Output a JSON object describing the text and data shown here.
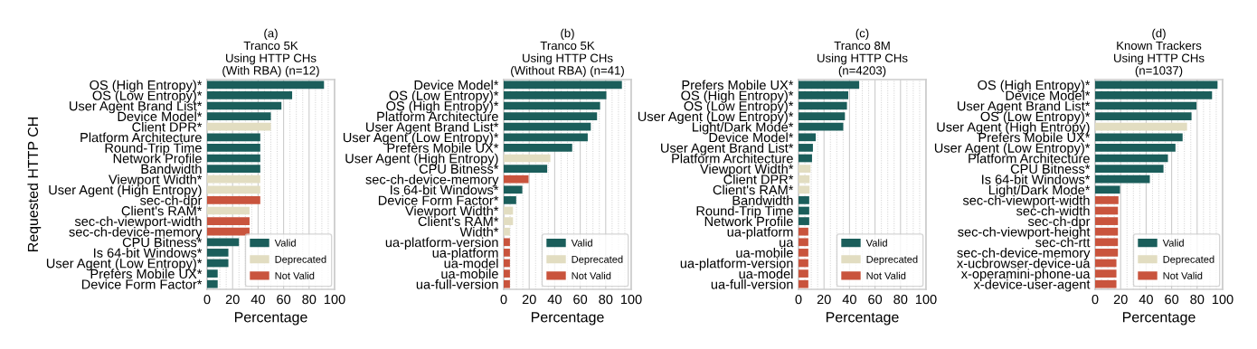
{
  "chart_data": [
    {
      "type": "bar",
      "orientation": "horizontal",
      "title": "(a)\nTranco 5K\nUsing HTTP CHs\n(With RBA) (n=12)",
      "xlabel": "Percentage",
      "ylabel": "Requested HTTP CH",
      "xlim": [
        0,
        100
      ],
      "xticks": [
        0,
        20,
        40,
        60,
        80,
        100
      ],
      "grid": "x",
      "legend": "bottom right",
      "categories": [
        "OS (High Entropy)*",
        "OS (Low Entropy)*",
        "User Agent Brand List*",
        "Device Model*",
        "Client DPR*",
        "Platform Architecture",
        "Round-Trip Time",
        "Network Profile",
        "Bandwidth",
        "Viewport Width*",
        "User Agent (High Entropy)",
        "sec-ch-dpr",
        "Client's RAM*",
        "sec-ch-viewport-width",
        "sec-ch-device-memory",
        "CPU Bitness*",
        "Is 64-bit Windows*",
        "User Agent (Low Entropy)*",
        "Prefers Mobile UX*",
        "Device Form Factor*"
      ],
      "series": [
        {
          "name": "Valid",
          "color": "#1b5e5b",
          "values": [
            91.7,
            66.7,
            58.3,
            50,
            null,
            41.7,
            41.7,
            41.7,
            41.7,
            null,
            null,
            null,
            null,
            null,
            null,
            25,
            16.7,
            16.7,
            8.3,
            8.3
          ]
        },
        {
          "name": "Deprecated",
          "color": "#e2ddc1",
          "values": [
            null,
            null,
            null,
            null,
            50,
            null,
            null,
            null,
            null,
            41.7,
            41.7,
            null,
            33.3,
            null,
            null,
            null,
            null,
            null,
            null,
            null
          ]
        },
        {
          "name": "Not Valid",
          "color": "#c9543d",
          "values": [
            null,
            null,
            null,
            null,
            null,
            null,
            null,
            null,
            null,
            null,
            null,
            41.7,
            null,
            33.3,
            33.3,
            null,
            null,
            null,
            null,
            null
          ]
        }
      ]
    },
    {
      "type": "bar",
      "orientation": "horizontal",
      "title": "(b)\nTranco 5K\nUsing HTTP CHs\n(Without RBA) (n=41)",
      "xlabel": "Percentage",
      "xlim": [
        0,
        100
      ],
      "xticks": [
        0,
        20,
        40,
        60,
        80,
        100
      ],
      "grid": "x",
      "legend": "bottom right",
      "categories": [
        "Device Model*",
        "OS (Low Entropy)*",
        "OS (High Entropy)*",
        "Platform Architecture",
        "User Agent Brand List*",
        "User Agent (Low Entropy)*",
        "Prefers Mobile UX*",
        "User Agent (High Entropy)",
        "CPU Bitness*",
        "sec-ch-device-memory",
        "Is 64-bit Windows*",
        "Device Form Factor*",
        "Viewport Width*",
        "Client's RAM*",
        "Width*",
        "ua-platform-version",
        "ua-platform",
        "ua-model",
        "ua-mobile",
        "ua-full-version"
      ],
      "series": [
        {
          "name": "Valid",
          "color": "#1b5e5b",
          "values": [
            92.7,
            80.5,
            75.6,
            73.2,
            68.3,
            65.9,
            53.7,
            null,
            34.1,
            null,
            14.6,
            9.8,
            null,
            null,
            null,
            null,
            null,
            null,
            null,
            null
          ]
        },
        {
          "name": "Deprecated",
          "color": "#e2ddc1",
          "values": [
            null,
            null,
            null,
            null,
            null,
            null,
            null,
            36.6,
            null,
            null,
            null,
            null,
            7.3,
            7.3,
            4.9,
            null,
            null,
            null,
            null,
            null
          ]
        },
        {
          "name": "Not Valid",
          "color": "#c9543d",
          "values": [
            null,
            null,
            null,
            null,
            null,
            null,
            null,
            null,
            null,
            19.5,
            null,
            null,
            null,
            null,
            null,
            4.9,
            4.9,
            4.9,
            4.9,
            4.9
          ]
        }
      ]
    },
    {
      "type": "bar",
      "orientation": "horizontal",
      "title": "(c)\nTranco 8M\nUsing HTTP CHs\n(n=4203)",
      "xlabel": "Percentage",
      "xlim": [
        0,
        100
      ],
      "xticks": [
        0,
        20,
        40,
        60,
        80,
        100
      ],
      "grid": "x",
      "legend": "bottom right",
      "categories": [
        "Prefers Mobile UX*",
        "OS (High Entropy)*",
        "OS (Low Entropy)*",
        "User Agent (Low Entropy)*",
        "Light/Dark Mode*",
        "Device Model*",
        "User Agent Brand List*",
        "Platform Architecture",
        "Viewport Width*",
        "Client DPR*",
        "Client's RAM*",
        "Bandwidth",
        "Round-Trip Time",
        "Network Profile",
        "ua-platform",
        "ua",
        "ua-mobile",
        "ua-platform-version",
        "ua-model",
        "ua-full-version"
      ],
      "series": [
        {
          "name": "Valid",
          "color": "#1b5e5b",
          "values": [
            47.6,
            39,
            38,
            36.4,
            35.1,
            13.5,
            11.3,
            10.6,
            null,
            null,
            null,
            8.4,
            8.4,
            8.4,
            null,
            null,
            null,
            null,
            null,
            null
          ]
        },
        {
          "name": "Deprecated",
          "color": "#e2ddc1",
          "values": [
            null,
            null,
            null,
            null,
            null,
            null,
            null,
            null,
            9.4,
            8.7,
            8.7,
            null,
            null,
            null,
            null,
            null,
            null,
            null,
            null,
            null
          ]
        },
        {
          "name": "Not Valid",
          "color": "#c9543d",
          "values": [
            null,
            null,
            null,
            null,
            null,
            null,
            null,
            null,
            null,
            null,
            null,
            null,
            null,
            null,
            7.7,
            7.7,
            7.7,
            7.7,
            7.7,
            7.7
          ]
        }
      ]
    },
    {
      "type": "bar",
      "orientation": "horizontal",
      "title": "(d)\nKnown Trackers\nUsing HTTP CHs\n(n=1037)",
      "xlabel": "Percentage",
      "xlim": [
        0,
        100
      ],
      "xticks": [
        0,
        20,
        40,
        60,
        80,
        100
      ],
      "grid": "x",
      "legend": "bottom right",
      "categories": [
        "OS (High Entropy)*",
        "Device Model*",
        "User Agent Brand List*",
        "OS (Low Entropy)*",
        "User Agent (High Entropy)",
        "Prefers Mobile UX*",
        "User Agent (Low Entropy)*",
        "Platform Architecture",
        "CPU Bitness*",
        "Is 64-bit Windows*",
        "Light/Dark Mode*",
        "sec-ch-viewport-width",
        "sec-ch-width",
        "sec-ch-dpr",
        "sec-ch-viewport-height",
        "sec-ch-rtt",
        "sec-ch-device-memory",
        "x-ucbrowser-device-ua",
        "x-operamini-phone-ua",
        "x-device-user-agent"
      ],
      "series": [
        {
          "name": "Valid",
          "color": "#1b5e5b",
          "values": [
            96,
            91.7,
            79.5,
            75.6,
            null,
            68.6,
            63,
            57.1,
            53.6,
            42.9,
            19.5,
            null,
            null,
            null,
            null,
            null,
            null,
            null,
            null,
            null
          ]
        },
        {
          "name": "Deprecated",
          "color": "#e2ddc1",
          "values": [
            null,
            null,
            null,
            null,
            72.1,
            null,
            null,
            null,
            null,
            null,
            null,
            null,
            null,
            null,
            null,
            null,
            null,
            null,
            null,
            null
          ]
        },
        {
          "name": "Not Valid",
          "color": "#c9543d",
          "values": [
            null,
            null,
            null,
            null,
            null,
            null,
            null,
            null,
            null,
            null,
            null,
            18.3,
            17.9,
            17.9,
            17.9,
            17.9,
            17.9,
            16.7,
            16.7,
            16.7
          ]
        }
      ]
    }
  ]
}
